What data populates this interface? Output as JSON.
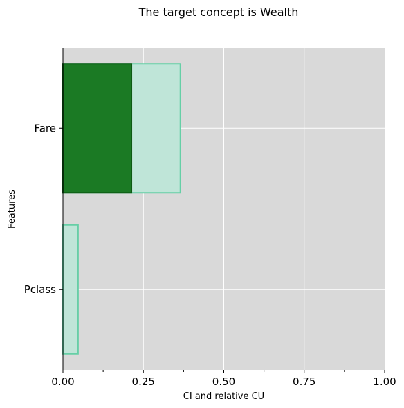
{
  "chart_data": {
    "type": "bar",
    "orientation": "horizontal",
    "title": "The target concept is Wealth",
    "xlabel": "CI and relative CU",
    "ylabel": "Features",
    "categories": [
      "Fare",
      "Pclass"
    ],
    "xlim": [
      0,
      1
    ],
    "x_ticks": [
      0.0,
      0.25,
      0.5,
      0.75,
      1.0
    ],
    "x_tick_labels": [
      "0.00",
      "0.25",
      "0.50",
      "0.75",
      "1.00"
    ],
    "x_minor_ticks": [
      0.125,
      0.375,
      0.625,
      0.875
    ],
    "series": [
      {
        "key": "relative_cu",
        "values": [
          0.365,
          0.047
        ],
        "color": "#bfe5d8",
        "edge_color": "#66cfa6"
      },
      {
        "key": "ci",
        "values": [
          0.213,
          0.0
        ],
        "color": "#1b7a24",
        "edge_color": "#0d5a13"
      }
    ],
    "grid": true,
    "background_color": "#d9d9d9",
    "legend": null
  }
}
